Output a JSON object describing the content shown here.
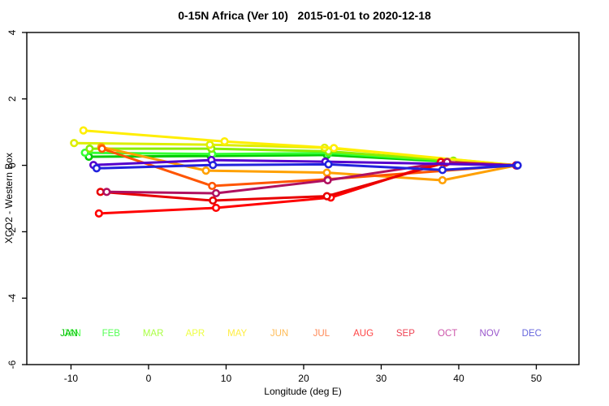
{
  "window": {
    "title": "0-15N Africa (Ver 10)   2015-01-01 to 2020-12-18"
  },
  "chart_data": {
    "type": "line",
    "title": "0-15N Africa (Ver 10)   2015-01-01 to 2020-12-18",
    "xlabel": "Longitude (deg E)",
    "ylabel": "XCO2 - Western Box",
    "xlim": [
      -15.7,
      55.5
    ],
    "ylim": [
      -6,
      4
    ],
    "x_ticks": [
      -10,
      0,
      10,
      20,
      30,
      40,
      50
    ],
    "y_ticks": [
      4,
      2,
      0,
      -2,
      -4,
      -6
    ],
    "grid": false,
    "marker": "open-circle",
    "legend_position": "bottom-inside-row",
    "series": [
      {
        "name": "JAN",
        "color": "#00CC00",
        "label_color": "#00BB00",
        "label_color2": "#44FF44",
        "points": [
          [
            -7.7,
            0.26
          ],
          [
            8.0,
            0.28
          ],
          [
            23.0,
            0.31
          ],
          [
            47.5,
            0.0
          ]
        ]
      },
      {
        "name": "FEB",
        "color": "#33FF33",
        "label_color": "#55FF55",
        "points": [
          [
            -8.2,
            0.38
          ],
          [
            8.2,
            0.34
          ],
          [
            23.2,
            0.37
          ],
          [
            47.5,
            0.0
          ]
        ]
      },
      {
        "name": "MAR",
        "color": "#88EE00",
        "label_color": "#AAFF44",
        "points": [
          [
            -7.6,
            0.5
          ],
          [
            8.1,
            0.5
          ],
          [
            23.2,
            0.42
          ],
          [
            39.3,
            0.14
          ],
          [
            47.5,
            0.0
          ]
        ]
      },
      {
        "name": "APR",
        "color": "#DDEE00",
        "label_color": "#EEFF44",
        "points": [
          [
            -9.6,
            0.67
          ],
          [
            7.9,
            0.62
          ],
          [
            22.7,
            0.53
          ],
          [
            47.5,
            0.0
          ]
        ]
      },
      {
        "name": "MAY",
        "color": "#FFEE00",
        "label_color": "#FFEE44",
        "points": [
          [
            -8.4,
            1.05
          ],
          [
            9.8,
            0.72
          ],
          [
            23.9,
            0.52
          ],
          [
            47.5,
            0.0
          ]
        ]
      },
      {
        "name": "JUN",
        "color": "#FFA000",
        "label_color": "#FFBB55",
        "points": [
          [
            -6.1,
            0.55
          ],
          [
            7.4,
            -0.16
          ],
          [
            23.0,
            -0.22
          ],
          [
            37.9,
            -0.45
          ],
          [
            47.5,
            0.0
          ]
        ]
      },
      {
        "name": "JUL",
        "color": "#FF5500",
        "label_color": "#FF8855",
        "points": [
          [
            -6.0,
            0.5
          ],
          [
            8.2,
            -0.62
          ],
          [
            23.1,
            -0.42
          ],
          [
            47.5,
            0.0
          ]
        ]
      },
      {
        "name": "AUG",
        "color": "#FF0000",
        "label_color": "#FF4444",
        "points": [
          [
            -6.4,
            -1.45
          ],
          [
            8.7,
            -1.28
          ],
          [
            23.5,
            -0.97
          ],
          [
            37.7,
            0.1
          ],
          [
            47.4,
            0.0
          ]
        ]
      },
      {
        "name": "SEP",
        "color": "#E80000",
        "label_color": "#EE4455",
        "points": [
          [
            -6.2,
            -0.8
          ],
          [
            8.3,
            -1.06
          ],
          [
            23.0,
            -0.93
          ],
          [
            38.3,
            0.08
          ],
          [
            47.4,
            0.0
          ]
        ]
      },
      {
        "name": "OCT",
        "color": "#B01060",
        "label_color": "#CC55AA",
        "points": [
          [
            -5.4,
            -0.8
          ],
          [
            8.7,
            -0.84
          ],
          [
            23.1,
            -0.45
          ],
          [
            38.5,
            0.1
          ],
          [
            47.5,
            0.0
          ]
        ]
      },
      {
        "name": "NOV",
        "color": "#5500CC",
        "label_color": "#9955CC",
        "points": [
          [
            -7.1,
            0.01
          ],
          [
            8.1,
            0.16
          ],
          [
            22.8,
            0.11
          ],
          [
            47.5,
            0.0
          ]
        ]
      },
      {
        "name": "DEC",
        "color": "#2222DD",
        "label_color": "#6666DD",
        "points": [
          [
            -6.7,
            -0.09
          ],
          [
            8.3,
            0.01
          ],
          [
            23.2,
            0.03
          ],
          [
            37.9,
            -0.14
          ],
          [
            47.6,
            0.0
          ]
        ]
      }
    ]
  }
}
